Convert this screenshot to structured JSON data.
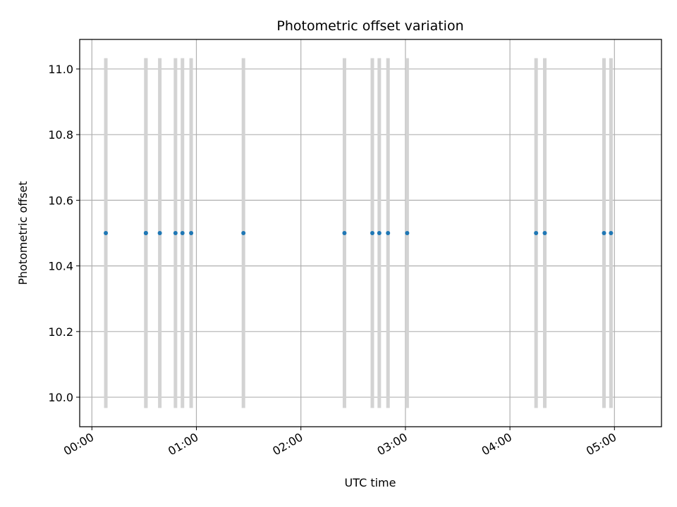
{
  "chart_data": {
    "type": "scatter",
    "title": "Photometric offset variation",
    "xlabel": "UTC time",
    "ylabel": "Photometric offset",
    "x_unit": "hh:mm",
    "xlim": [
      "-00:07",
      "05:27"
    ],
    "ylim": [
      9.91,
      11.09
    ],
    "x_ticks": [
      "00:00",
      "01:00",
      "02:00",
      "03:00",
      "04:00",
      "05:00"
    ],
    "y_ticks": [
      "10.0",
      "10.2",
      "10.4",
      "10.6",
      "10.8",
      "11.0"
    ],
    "grid": true,
    "error_band": [
      9.967,
      11.033
    ],
    "series": [
      {
        "x": [
          "00:08",
          "00:31",
          "00:31",
          "00:39",
          "00:48",
          "00:52",
          "00:57",
          "01:27",
          "02:25",
          "02:41",
          "02:45",
          "02:50",
          "03:01",
          "04:15",
          "04:20",
          "04:54",
          "04:58"
        ],
        "y": [
          10.5,
          10.5,
          10.5,
          10.5,
          10.5,
          10.5,
          10.5,
          10.5,
          10.5,
          10.5,
          10.5,
          10.5,
          10.5,
          10.5,
          10.5,
          10.5,
          10.5
        ],
        "color": "#1f77b4",
        "error_color": "#d3d3d3"
      }
    ]
  }
}
